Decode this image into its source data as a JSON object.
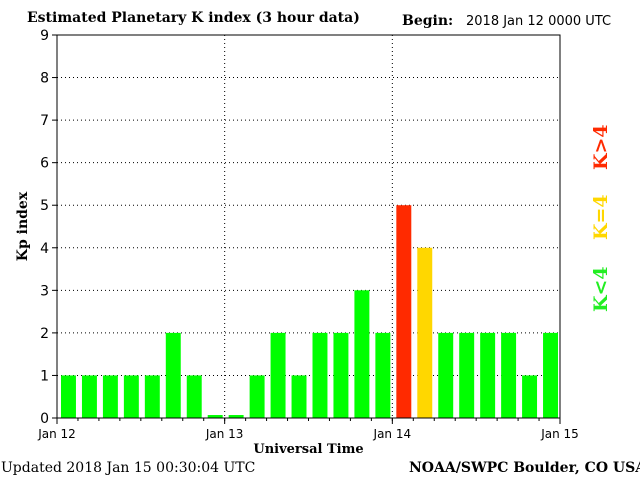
{
  "header": {
    "title": "Estimated Planetary K index (3 hour data)",
    "begin_label": "Begin:",
    "begin_value": "2018 Jan 12 0000 UTC"
  },
  "footer": {
    "updated": "Updated 2018 Jan 15 00:30:04 UTC",
    "source": "NOAA/SWPC Boulder, CO USA"
  },
  "legend": {
    "high": "K>4",
    "equal": "K=4",
    "low": "K<4"
  },
  "colors": {
    "low": "#00ff00",
    "equal": "#ffd700",
    "high": "#ff2a00",
    "axis": "#000000",
    "grid": "#000000"
  },
  "chart_data": {
    "type": "bar",
    "title": "Estimated Planetary K index (3 hour data)",
    "xlabel": "Universal Time",
    "ylabel": "Kp index",
    "ylim": [
      0,
      9
    ],
    "yticks": [
      "0",
      "1",
      "2",
      "3",
      "4",
      "5",
      "6",
      "7",
      "8",
      "9"
    ],
    "xticks": [
      "Jan 12",
      "Jan 13",
      "Jan 14",
      "Jan 15"
    ],
    "grid": true,
    "values": [
      1,
      1,
      1,
      1,
      1,
      2,
      1,
      0.07,
      0.07,
      1,
      2,
      1,
      2,
      2,
      3,
      2,
      5,
      4,
      2,
      2,
      2,
      2,
      1,
      2
    ]
  }
}
